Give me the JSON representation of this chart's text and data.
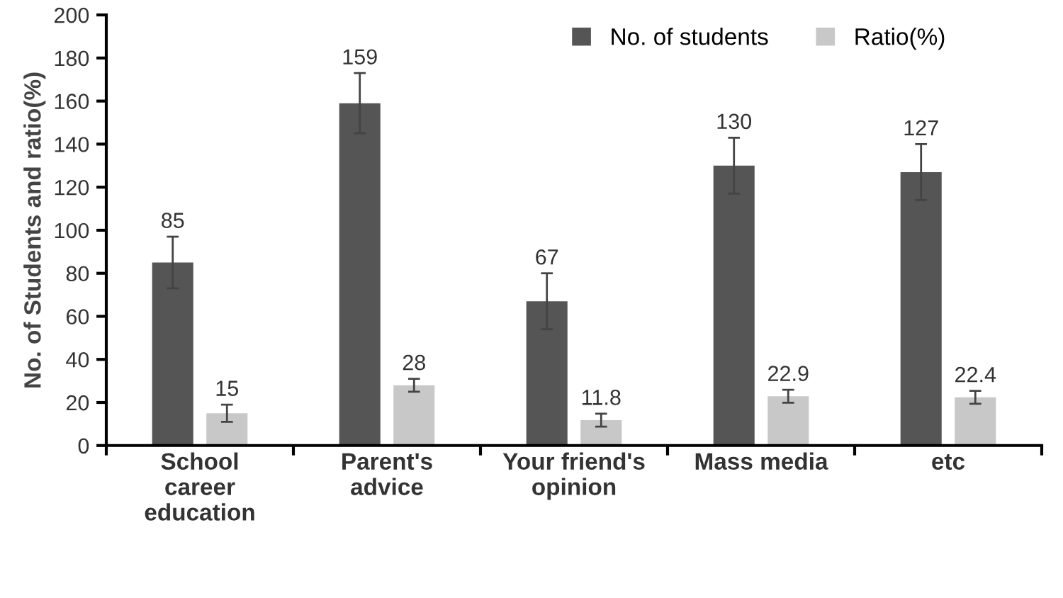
{
  "chart_data": {
    "type": "bar",
    "ylabel": "No. of Students and ratio(%)",
    "categories": [
      "School\ncareer\neducation",
      "Parent's\nadvice",
      "Your friend's\nopinion",
      "Mass media",
      "etc"
    ],
    "series": [
      {
        "name": "No. of students",
        "color": "#555555",
        "values": [
          85,
          159,
          67,
          130,
          127
        ],
        "errors": [
          12,
          14,
          13,
          13,
          13
        ]
      },
      {
        "name": "Ratio(%)",
        "color": "#c8c8c8",
        "values": [
          15,
          28,
          11.8,
          22.9,
          22.4
        ],
        "errors": [
          4,
          3,
          3,
          3,
          3
        ]
      }
    ],
    "ylim": [
      0,
      200
    ],
    "yticks": [
      0,
      20,
      40,
      60,
      80,
      100,
      120,
      140,
      160,
      180,
      200
    ],
    "data_labels": true,
    "grid": false,
    "legend": "top right"
  }
}
